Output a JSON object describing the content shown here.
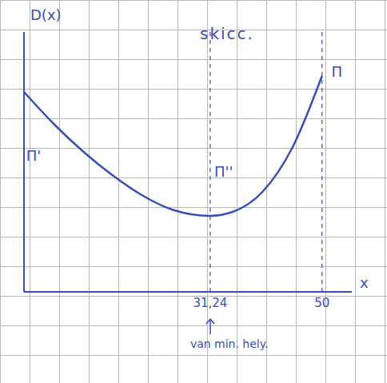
{
  "chart_data": {
    "type": "line",
    "title": "skicc.",
    "x_label": "x",
    "y_label": "D(x)",
    "x": [
      0,
      5,
      10,
      15,
      20,
      25,
      31.24,
      35,
      40,
      45,
      50
    ],
    "values": [
      5.0,
      4.2,
      3.5,
      2.9,
      2.4,
      2.05,
      1.9,
      2.0,
      2.5,
      3.6,
      5.4
    ],
    "color": "#3a4fb0",
    "xlim": [
      0,
      55
    ],
    "ylim": [
      0,
      6.5
    ],
    "xticks": [
      {
        "value": 31.24,
        "label": "31,24"
      },
      {
        "value": 50,
        "label": "50"
      }
    ],
    "tick_labels": "x",
    "annotations": [
      {
        "text": "Π'",
        "x": 1.6,
        "y": 3.4
      },
      {
        "text": "Π''",
        "x": 33.5,
        "y": 3.0
      },
      {
        "text": "Π",
        "x": 52.5,
        "y": 5.5
      }
    ],
    "note": {
      "text": "van min. hely.",
      "x": 31.24
    }
  }
}
